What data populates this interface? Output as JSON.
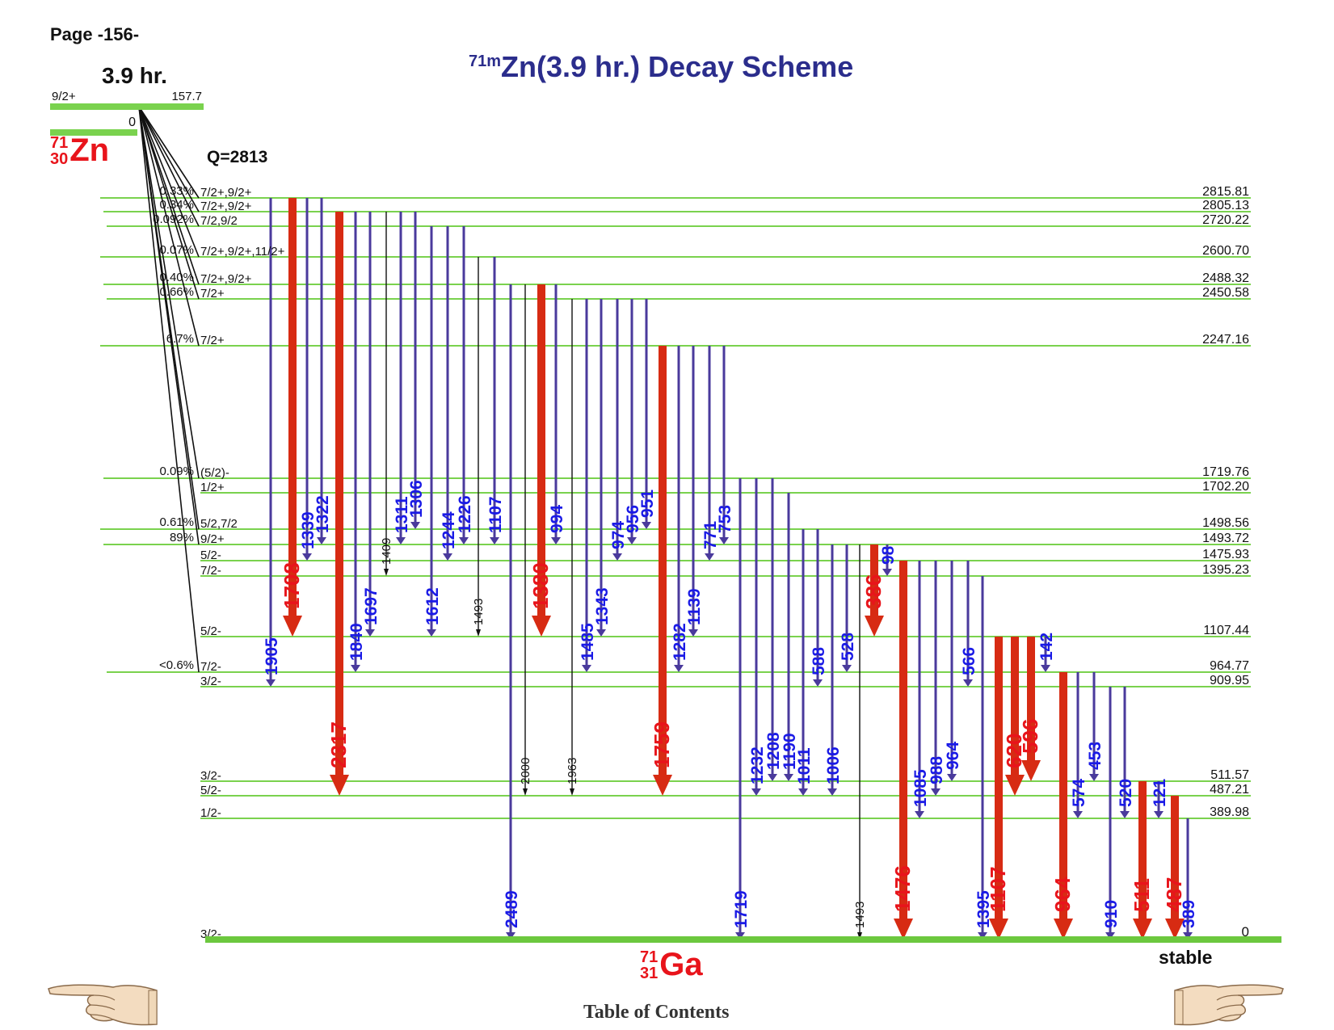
{
  "page_label": "Page -156-",
  "title": {
    "sup": "71m",
    "main": "Zn(3.9 hr.) Decay Scheme"
  },
  "parent": {
    "half_life": "3.9 hr.",
    "spin": "9/2+",
    "energy": "157.7",
    "ground_energy": "0",
    "mass": "71",
    "z": "30",
    "symbol": "Zn",
    "q_value": "Q=2813"
  },
  "daughter": {
    "mass": "71",
    "z": "31",
    "symbol": "Ga",
    "stability": "stable"
  },
  "colors": {
    "level": "#7ad24e",
    "ground": "#6cc83e",
    "weak": "#4a3a9c",
    "strong": "#d72b13",
    "faint": "#111111",
    "label_weak": "#1a1ae6",
    "label_strong": "#e8141b"
  },
  "levels": [
    {
      "energy": "2815.81",
      "spin": "7/2+,9/2+",
      "beta": "0.33%"
    },
    {
      "energy": "2805.13",
      "spin": "7/2+,9/2+",
      "beta": "0.34%"
    },
    {
      "energy": "2720.22",
      "spin": "7/2,9/2",
      "beta": "0.092%"
    },
    {
      "energy": "2600.70",
      "spin": "7/2+,9/2+,11/2+",
      "beta": "0.07%"
    },
    {
      "energy": "2488.32",
      "spin": "7/2+,9/2+",
      "beta": "0.40%"
    },
    {
      "energy": "2450.58",
      "spin": "7/2+",
      "beta": "0.66%"
    },
    {
      "energy": "2247.16",
      "spin": "7/2+",
      "beta": "6.7%"
    },
    {
      "energy": "1719.76",
      "spin": "(5/2)-",
      "beta": "0.09%"
    },
    {
      "energy": "1702.20",
      "spin": "1/2+",
      "beta": ""
    },
    {
      "energy": "1498.56",
      "spin": "5/2,7/2",
      "beta": "0.61%"
    },
    {
      "energy": "1493.72",
      "spin": "9/2+",
      "beta": "89%"
    },
    {
      "energy": "1475.93",
      "spin": "5/2-",
      "beta": ""
    },
    {
      "energy": "1395.23",
      "spin": "7/2-",
      "beta": ""
    },
    {
      "energy": "1107.44",
      "spin": "5/2-",
      "beta": ""
    },
    {
      "energy": "964.77",
      "spin": "7/2-",
      "beta": "<0.6%"
    },
    {
      "energy": "909.95",
      "spin": "3/2-",
      "beta": ""
    },
    {
      "energy": "511.57",
      "spin": "3/2-",
      "beta": ""
    },
    {
      "energy": "487.21",
      "spin": "5/2-",
      "beta": ""
    },
    {
      "energy": "389.98",
      "spin": "1/2-",
      "beta": ""
    },
    {
      "energy": "0",
      "spin": "3/2-",
      "beta": ""
    }
  ],
  "gammas": [
    {
      "energy": "1905",
      "from": "2815.81",
      "to": "909.95",
      "kind": "weak"
    },
    {
      "energy": "1708",
      "from": "2815.81",
      "to": "1107.44",
      "kind": "strong"
    },
    {
      "energy": "1339",
      "from": "2815.81",
      "to": "1475.93",
      "kind": "weak"
    },
    {
      "energy": "1322",
      "from": "2815.81",
      "to": "1493.72",
      "kind": "weak"
    },
    {
      "energy": "2317",
      "from": "2805.13",
      "to": "487.21",
      "kind": "strong"
    },
    {
      "energy": "1840",
      "from": "2805.13",
      "to": "964.77",
      "kind": "weak"
    },
    {
      "energy": "1697",
      "from": "2805.13",
      "to": "1107.44",
      "kind": "weak"
    },
    {
      "energy": "1409",
      "from": "2805.13",
      "to": "1395.23",
      "kind": "faint"
    },
    {
      "energy": "1311",
      "from": "2805.13",
      "to": "1493.72",
      "kind": "weak"
    },
    {
      "energy": "1306",
      "from": "2805.13",
      "to": "1498.56",
      "kind": "weak"
    },
    {
      "energy": "1612",
      "from": "2720.22",
      "to": "1107.44",
      "kind": "weak"
    },
    {
      "energy": "1244",
      "from": "2720.22",
      "to": "1475.93",
      "kind": "weak"
    },
    {
      "energy": "1226",
      "from": "2720.22",
      "to": "1493.72",
      "kind": "weak"
    },
    {
      "energy": "1493",
      "from": "2600.70",
      "to": "1107.44",
      "kind": "faint"
    },
    {
      "energy": "1107",
      "from": "2600.70",
      "to": "1493.72",
      "kind": "weak"
    },
    {
      "energy": "2489",
      "from": "2488.32",
      "to": "0",
      "kind": "weak"
    },
    {
      "energy": "2000",
      "from": "2488.32",
      "to": "487.21",
      "kind": "faint"
    },
    {
      "energy": "1380",
      "from": "2488.32",
      "to": "1107.44",
      "kind": "strong"
    },
    {
      "energy": "994",
      "from": "2488.32",
      "to": "1493.72",
      "kind": "weak"
    },
    {
      "energy": "1963",
      "from": "2450.58",
      "to": "487.21",
      "kind": "faint"
    },
    {
      "energy": "1485",
      "from": "2450.58",
      "to": "964.77",
      "kind": "weak"
    },
    {
      "energy": "1343",
      "from": "2450.58",
      "to": "1107.44",
      "kind": "weak"
    },
    {
      "energy": "974",
      "from": "2450.58",
      "to": "1475.93",
      "kind": "weak"
    },
    {
      "energy": "956",
      "from": "2450.58",
      "to": "1493.72",
      "kind": "weak"
    },
    {
      "energy": "951",
      "from": "2450.58",
      "to": "1498.56",
      "kind": "weak"
    },
    {
      "energy": "1759",
      "from": "2247.16",
      "to": "487.21",
      "kind": "strong"
    },
    {
      "energy": "1282",
      "from": "2247.16",
      "to": "964.77",
      "kind": "weak"
    },
    {
      "energy": "1139",
      "from": "2247.16",
      "to": "1107.44",
      "kind": "weak"
    },
    {
      "energy": "771",
      "from": "2247.16",
      "to": "1475.93",
      "kind": "weak"
    },
    {
      "energy": "753",
      "from": "2247.16",
      "to": "1493.72",
      "kind": "weak"
    },
    {
      "energy": "1719",
      "from": "1719.76",
      "to": "0",
      "kind": "weak"
    },
    {
      "energy": "1232",
      "from": "1719.76",
      "to": "487.21",
      "kind": "weak"
    },
    {
      "energy": "1208",
      "from": "1719.76",
      "to": "511.57",
      "kind": "weak"
    },
    {
      "energy": "1190",
      "from": "1702.20",
      "to": "511.57",
      "kind": "weak"
    },
    {
      "energy": "1011",
      "from": "1498.56",
      "to": "487.21",
      "kind": "weak"
    },
    {
      "energy": "588",
      "from": "1498.56",
      "to": "909.95",
      "kind": "weak"
    },
    {
      "energy": "1006",
      "from": "1493.72",
      "to": "487.21",
      "kind": "weak"
    },
    {
      "energy": "528",
      "from": "1493.72",
      "to": "964.77",
      "kind": "weak"
    },
    {
      "energy": "1493",
      "from": "1493.72",
      "to": "0",
      "kind": "faint"
    },
    {
      "energy": "386",
      "from": "1493.72",
      "to": "1107.44",
      "kind": "strong"
    },
    {
      "energy": "98",
      "from": "1493.72",
      "to": "1395.23",
      "kind": "weak"
    },
    {
      "energy": "1476",
      "from": "1475.93",
      "to": "0",
      "kind": "strong"
    },
    {
      "energy": "1085",
      "from": "1475.93",
      "to": "389.98",
      "kind": "weak"
    },
    {
      "energy": "988",
      "from": "1475.93",
      "to": "487.21",
      "kind": "weak"
    },
    {
      "energy": "964",
      "from": "1475.93",
      "to": "511.57",
      "kind": "weak"
    },
    {
      "energy": "566",
      "from": "1475.93",
      "to": "909.95",
      "kind": "weak"
    },
    {
      "energy": "1395",
      "from": "1395.23",
      "to": "0",
      "kind": "weak"
    },
    {
      "energy": "1107",
      "from": "1107.44",
      "to": "0",
      "kind": "strong"
    },
    {
      "energy": "620",
      "from": "1107.44",
      "to": "487.21",
      "kind": "strong"
    },
    {
      "energy": "596",
      "from": "1107.44",
      "to": "511.57",
      "kind": "strong"
    },
    {
      "energy": "142",
      "from": "1107.44",
      "to": "964.77",
      "kind": "weak"
    },
    {
      "energy": "964",
      "from": "964.77",
      "to": "0",
      "kind": "strong"
    },
    {
      "energy": "574",
      "from": "964.77",
      "to": "389.98",
      "kind": "weak"
    },
    {
      "energy": "453",
      "from": "964.77",
      "to": "511.57",
      "kind": "weak"
    },
    {
      "energy": "910",
      "from": "909.95",
      "to": "0",
      "kind": "weak"
    },
    {
      "energy": "520",
      "from": "909.95",
      "to": "389.98",
      "kind": "weak"
    },
    {
      "energy": "511",
      "from": "511.57",
      "to": "0",
      "kind": "strong"
    },
    {
      "energy": "121",
      "from": "511.57",
      "to": "389.98",
      "kind": "weak"
    },
    {
      "energy": "487",
      "from": "487.21",
      "to": "0",
      "kind": "strong"
    },
    {
      "energy": "389",
      "from": "389.98",
      "to": "0",
      "kind": "weak"
    }
  ],
  "footer": {
    "toc": "Table of Contents"
  }
}
